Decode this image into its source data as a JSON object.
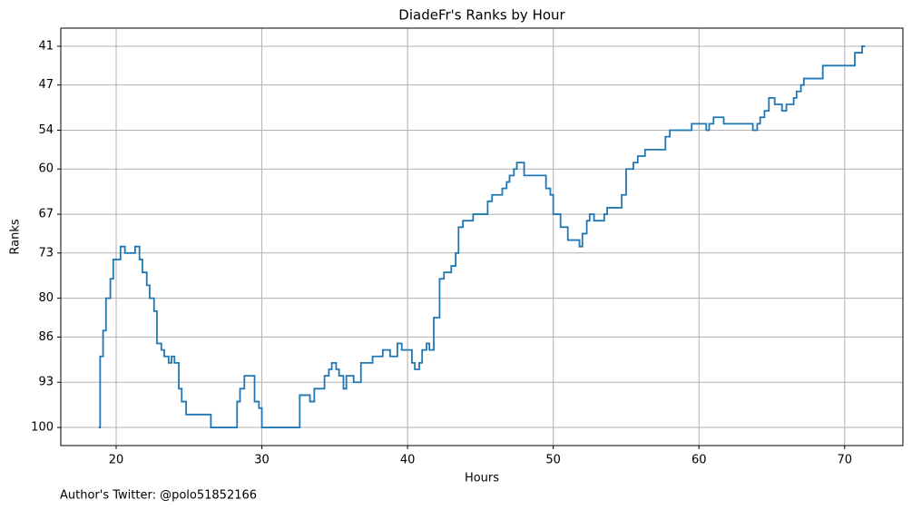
{
  "chart_data": {
    "type": "line",
    "step": "post",
    "title": "DiadeFr's Ranks by Hour",
    "x_label": "Hours",
    "y_label": "Ranks",
    "annotation": "Author's Twitter: @polo51852166",
    "color": "#1f77b4",
    "grid": true,
    "xlim": [
      16.2,
      74.0
    ],
    "xticks": [
      20,
      30,
      40,
      50,
      60,
      70
    ],
    "ylim": [
      102.8,
      38.2
    ],
    "yticks": [
      41,
      47,
      54,
      60,
      67,
      73,
      80,
      86,
      93,
      100
    ],
    "x": [
      18.8,
      18.9,
      19.1,
      19.3,
      19.6,
      19.8,
      20.3,
      20.6,
      21.3,
      21.6,
      21.8,
      22.1,
      22.3,
      22.6,
      22.8,
      23.1,
      23.3,
      23.6,
      23.8,
      24.0,
      24.3,
      24.5,
      24.8,
      26.5,
      28.3,
      28.5,
      28.8,
      29.5,
      29.8,
      30.0,
      32.6,
      33.3,
      33.6,
      34.3,
      34.6,
      34.8,
      35.1,
      35.3,
      35.6,
      35.8,
      36.3,
      36.8,
      37.6,
      38.3,
      38.8,
      39.3,
      39.6,
      40.3,
      40.5,
      40.8,
      41.0,
      41.3,
      41.5,
      41.8,
      42.2,
      42.5,
      43.0,
      43.3,
      43.5,
      43.8,
      44.5,
      45.5,
      45.8,
      46.5,
      46.8,
      47.0,
      47.3,
      47.5,
      48.0,
      49.5,
      49.8,
      50.0,
      50.5,
      51.0,
      51.8,
      52.0,
      52.3,
      52.5,
      52.8,
      53.5,
      53.7,
      54.7,
      55.0,
      55.5,
      55.8,
      56.3,
      57.7,
      58.0,
      59.5,
      60.5,
      60.7,
      61.0,
      61.7,
      63.7,
      64.0,
      64.2,
      64.5,
      64.8,
      65.2,
      65.7,
      66.0,
      66.5,
      66.7,
      67.0,
      67.2,
      68.5,
      70.7,
      71.2,
      71.4
    ],
    "values": [
      100,
      89,
      85,
      80,
      77,
      74,
      72,
      73,
      72,
      74,
      76,
      78,
      80,
      82,
      87,
      88,
      89,
      90,
      89,
      90,
      94,
      96,
      98,
      100,
      96,
      94,
      92,
      96,
      97,
      100,
      95,
      96,
      94,
      92,
      91,
      90,
      91,
      92,
      94,
      92,
      93,
      90,
      89,
      88,
      89,
      87,
      88,
      90,
      91,
      90,
      88,
      87,
      88,
      83,
      77,
      76,
      75,
      73,
      69,
      68,
      67,
      65,
      64,
      63,
      62,
      61,
      60,
      59,
      61,
      63,
      64,
      67,
      69,
      71,
      72,
      70,
      68,
      67,
      68,
      67,
      66,
      64,
      60,
      59,
      58,
      57,
      55,
      54,
      53,
      54,
      53,
      52,
      53,
      54,
      53,
      52,
      51,
      49,
      50,
      51,
      50,
      49,
      48,
      47,
      46,
      44,
      42,
      41,
      41
    ]
  }
}
